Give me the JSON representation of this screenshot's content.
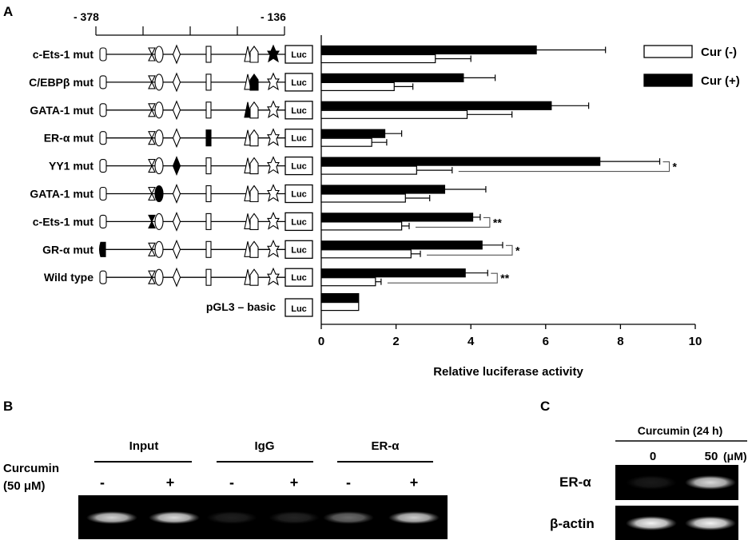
{
  "panels": {
    "a": "A",
    "b": "B",
    "c": "C"
  },
  "promoter": {
    "left_pos": "- 378",
    "right_pos": "- 136",
    "luc": "Luc",
    "constructs": [
      {
        "label": "c-Ets-1 mut",
        "mut_site": "ets2"
      },
      {
        "label": "C/EBPβ mut",
        "mut_site": "cebp"
      },
      {
        "label": "GATA-1 mut",
        "mut_site": "gata2"
      },
      {
        "label": "ER-α mut",
        "mut_site": "er"
      },
      {
        "label": "YY1 mut",
        "mut_site": "yy1"
      },
      {
        "label": "GATA-1 mut",
        "mut_site": "gata1"
      },
      {
        "label": "c-Ets-1 mut",
        "mut_site": "ets1"
      },
      {
        "label": "GR-α mut",
        "mut_site": "gr"
      },
      {
        "label": "Wild type",
        "mut_site": ""
      }
    ],
    "basic_label": "pGL3 – basic"
  },
  "chart_data": {
    "type": "bar",
    "orientation": "horizontal",
    "xlabel": "Relative luciferase activity",
    "xlim": [
      0,
      10
    ],
    "xticks": [
      0,
      2,
      4,
      6,
      8,
      10
    ],
    "categories": [
      "c-Ets-1 mut",
      "C/EBPβ mut",
      "GATA-1 mut",
      "ER-α mut",
      "YY1 mut",
      "GATA-1 mut",
      "c-Ets-1 mut",
      "GR-α mut",
      "Wild type",
      "pGL3 – basic"
    ],
    "legend_position": "top-right",
    "series": [
      {
        "name": "Cur (+)",
        "color": "#000000",
        "values": [
          5.75,
          3.8,
          6.15,
          1.7,
          7.45,
          3.3,
          4.05,
          4.3,
          3.85,
          1.0
        ],
        "errors": [
          1.85,
          0.85,
          1.0,
          0.45,
          1.6,
          1.1,
          0.2,
          0.55,
          0.6,
          0
        ]
      },
      {
        "name": "Cur (-)",
        "color": "#ffffff",
        "values": [
          3.05,
          1.95,
          3.9,
          1.35,
          2.55,
          2.25,
          2.15,
          2.4,
          1.45,
          1.0
        ],
        "errors": [
          0.95,
          0.5,
          1.2,
          0.4,
          0.95,
          0.65,
          0.2,
          0.25,
          0.15,
          0
        ]
      }
    ],
    "significance": [
      {
        "row": 4,
        "mark": "*"
      },
      {
        "row": 6,
        "mark": "**"
      },
      {
        "row": 7,
        "mark": "*"
      },
      {
        "row": 8,
        "mark": "**"
      }
    ]
  },
  "panel_b": {
    "groups": [
      "Input",
      "IgG",
      "ER-α"
    ],
    "treatment_label_line1": "Curcumin",
    "treatment_label_line2": "(50 μM)",
    "signs": [
      "-",
      "+",
      "-",
      "+",
      "-",
      "+"
    ],
    "band_intensity": [
      0.82,
      0.85,
      0.12,
      0.14,
      0.42,
      0.8
    ]
  },
  "panel_c": {
    "header": "Curcumin (24 h)",
    "doses": [
      "0",
      "50"
    ],
    "unit": "(μM)",
    "rows": [
      {
        "label": "ER-α",
        "intensity": [
          0.1,
          0.85
        ]
      },
      {
        "label": "β-actin",
        "intensity": [
          0.95,
          0.95
        ]
      }
    ]
  }
}
